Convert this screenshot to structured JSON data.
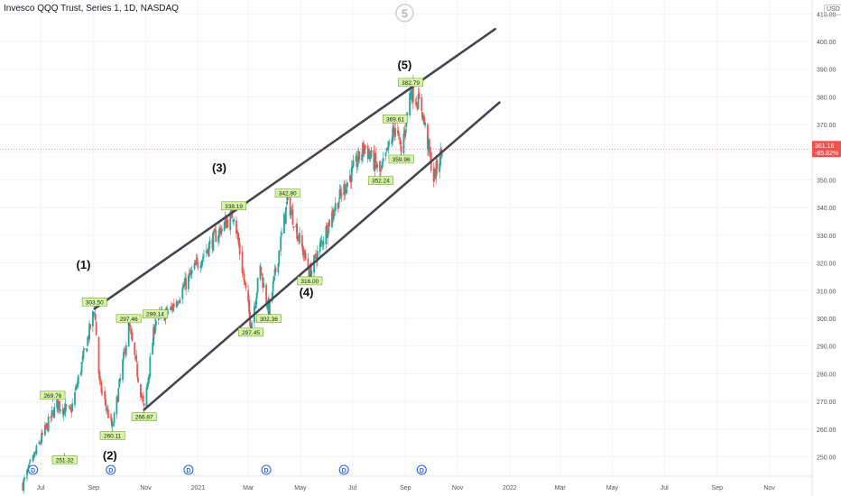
{
  "header": {
    "title": "Invesco QQQ Trust, Series 1, 1D, NASDAQ",
    "currency": "USD"
  },
  "colors": {
    "up": "#26a69a",
    "down": "#ef5350",
    "channel": "#434651",
    "label_bg": "#d4f5a2",
    "last_price_bg": "#ef5350",
    "dividend": "#2962ff"
  },
  "chart_data": {
    "type": "candlestick",
    "y_range": [
      243,
      415
    ],
    "y_ticks": [
      "410.00",
      "400.00",
      "390.00",
      "380.00",
      "370.00",
      "360.00",
      "350.00",
      "340.00",
      "330.00",
      "320.00",
      "310.00",
      "300.00",
      "290.00",
      "280.00",
      "270.00",
      "260.00",
      "250.00"
    ],
    "x_ticks": [
      {
        "label": "May",
        "date": "2020-05-01"
      },
      {
        "label": "Jul",
        "date": "2020-07-01"
      },
      {
        "label": "Sep",
        "date": "2020-09-01"
      },
      {
        "label": "Nov",
        "date": "2020-11-01"
      },
      {
        "label": "2021",
        "date": "2021-01-01"
      },
      {
        "label": "Mar",
        "date": "2021-03-01"
      },
      {
        "label": "May",
        "date": "2021-05-01"
      },
      {
        "label": "Jul",
        "date": "2021-07-01"
      },
      {
        "label": "Sep",
        "date": "2021-09-01"
      },
      {
        "label": "Nov",
        "date": "2021-11-01"
      },
      {
        "label": "2022",
        "date": "2022-01-01"
      },
      {
        "label": "Mar",
        "date": "2022-03-01"
      },
      {
        "label": "May",
        "date": "2022-05-01"
      },
      {
        "label": "Jul",
        "date": "2022-07-01"
      },
      {
        "label": "Sep",
        "date": "2022-09-01"
      },
      {
        "label": "Nov",
        "date": "2022-11-01"
      }
    ],
    "x_domain": [
      "2020-04-01",
      "2022-12-20"
    ],
    "price_path": [
      {
        "date": "2020-06-10",
        "price": 240
      },
      {
        "date": "2020-07-01",
        "price": 256
      },
      {
        "date": "2020-07-20",
        "price": 269
      },
      {
        "date": "2020-08-05",
        "price": 266
      },
      {
        "date": "2020-09-02",
        "price": 303.5
      },
      {
        "date": "2020-09-08",
        "price": 276
      },
      {
        "date": "2020-09-23",
        "price": 260.11
      },
      {
        "date": "2020-10-12",
        "price": 297.46
      },
      {
        "date": "2020-10-30",
        "price": 266.87
      },
      {
        "date": "2020-11-12",
        "price": 299.14
      },
      {
        "date": "2020-11-30",
        "price": 303
      },
      {
        "date": "2020-12-28",
        "price": 318
      },
      {
        "date": "2021-01-22",
        "price": 330
      },
      {
        "date": "2021-02-12",
        "price": 338.19
      },
      {
        "date": "2021-03-04",
        "price": 297.45
      },
      {
        "date": "2021-03-15",
        "price": 318
      },
      {
        "date": "2021-03-25",
        "price": 302.36
      },
      {
        "date": "2021-04-16",
        "price": 342.8
      },
      {
        "date": "2021-05-12",
        "price": 316
      },
      {
        "date": "2021-06-10",
        "price": 340
      },
      {
        "date": "2021-07-15",
        "price": 362
      },
      {
        "date": "2021-08-03",
        "price": 352.24
      },
      {
        "date": "2021-08-20",
        "price": 369.61
      },
      {
        "date": "2021-08-27",
        "price": 359.96
      },
      {
        "date": "2021-09-07",
        "price": 382.79
      },
      {
        "date": "2021-09-20",
        "price": 376
      },
      {
        "date": "2021-10-04",
        "price": 350.5
      },
      {
        "date": "2021-10-14",
        "price": 361.16
      }
    ],
    "annotations": [
      {
        "label": "303.50",
        "date": "2020-09-02",
        "price": 303.5,
        "pos": "above"
      },
      {
        "label": "269.76",
        "date": "2020-07-15",
        "price": 269.76,
        "pos": "above"
      },
      {
        "label": "251.32",
        "date": "2020-07-29",
        "price": 251.32,
        "pos": "below"
      },
      {
        "label": "260.11",
        "date": "2020-09-23",
        "price": 260.11,
        "pos": "below"
      },
      {
        "label": "297.46",
        "date": "2020-10-12",
        "price": 297.46,
        "pos": "above"
      },
      {
        "label": "266.87",
        "date": "2020-10-30",
        "price": 266.87,
        "pos": "below"
      },
      {
        "label": "299.14",
        "date": "2020-11-12",
        "price": 299.14,
        "pos": "above"
      },
      {
        "label": "338.19",
        "date": "2021-02-12",
        "price": 338.19,
        "pos": "above"
      },
      {
        "label": "297.45",
        "date": "2021-03-04",
        "price": 297.45,
        "pos": "below"
      },
      {
        "label": "302.36",
        "date": "2021-03-25",
        "price": 302.36,
        "pos": "below"
      },
      {
        "label": "342.80",
        "date": "2021-04-16",
        "price": 342.8,
        "pos": "above"
      },
      {
        "label": "316.00",
        "date": "2021-05-12",
        "price": 316,
        "pos": "below"
      },
      {
        "label": "352.24",
        "date": "2021-08-03",
        "price": 352.24,
        "pos": "below"
      },
      {
        "label": "369.61",
        "date": "2021-08-20",
        "price": 369.61,
        "pos": "above"
      },
      {
        "label": "359.96",
        "date": "2021-08-27",
        "price": 359.96,
        "pos": "below"
      },
      {
        "label": "382.79",
        "date": "2021-09-07",
        "price": 382.79,
        "pos": "above"
      }
    ],
    "waves": [
      {
        "label": "(1)",
        "date": "2020-08-20",
        "price": 318
      },
      {
        "label": "(2)",
        "date": "2020-09-20",
        "price": 249
      },
      {
        "label": "(3)",
        "date": "2021-01-26",
        "price": 353
      },
      {
        "label": "(4)",
        "date": "2021-05-08",
        "price": 308
      },
      {
        "label": "(5)",
        "date": "2021-08-31",
        "price": 390
      },
      {
        "label": "5",
        "date": "2021-08-31",
        "price": 409,
        "circled": true
      }
    ],
    "channel_lines": [
      {
        "from": {
          "date": "2020-09-02",
          "price": 303.5
        },
        "to": {
          "date": "2021-12-15",
          "price": 404.5
        }
      },
      {
        "from": {
          "date": "2020-10-30",
          "price": 267
        },
        "to": {
          "date": "2021-12-20",
          "price": 378
        }
      }
    ],
    "last_price": {
      "value": 361.16,
      "label": "361.16",
      "change": "-85.82%"
    },
    "dividend_marker": "D",
    "dividend_dates": [
      "2020-06-22",
      "2020-09-21",
      "2020-12-21",
      "2021-03-22",
      "2021-06-21",
      "2021-09-20"
    ]
  }
}
